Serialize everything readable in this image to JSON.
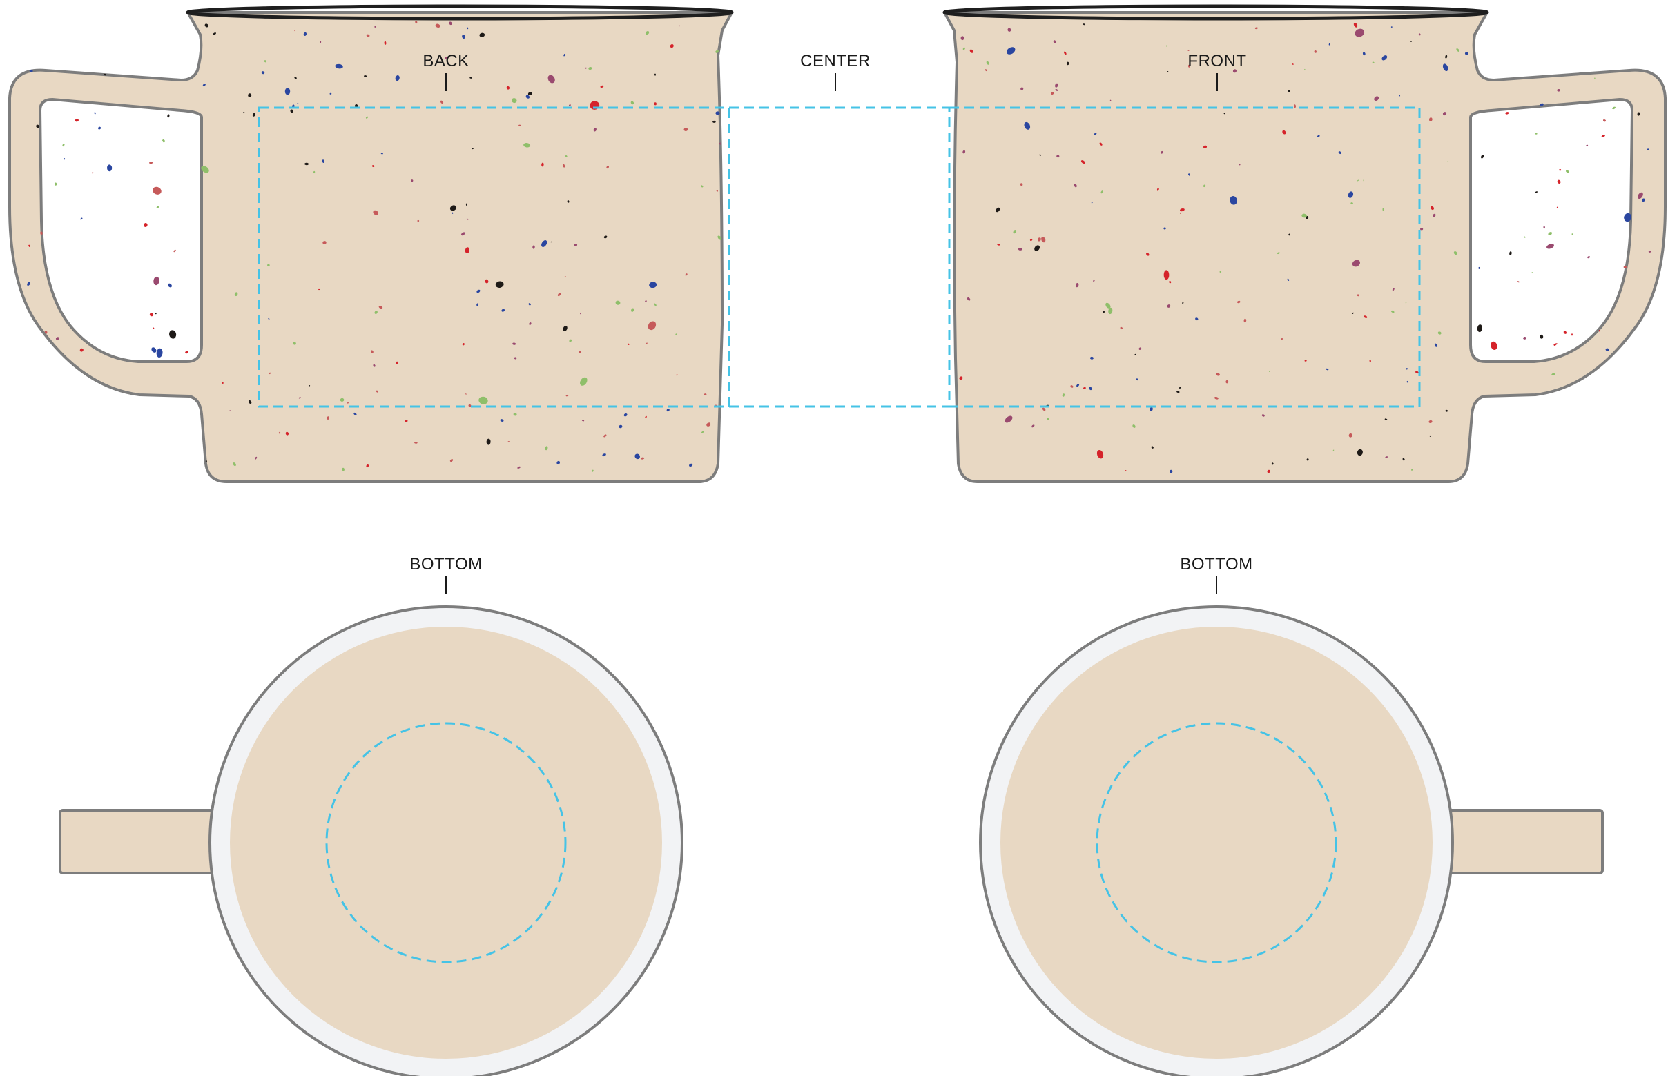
{
  "labels": {
    "back": "BACK",
    "center": "CENTER",
    "front": "FRONT",
    "bottom_left": "BOTTOM",
    "bottom_right": "BOTTOM"
  },
  "colors": {
    "mug_fill": "#e8d8c3",
    "mug_outline": "#7d7d7d",
    "rim": "#1f1f1f",
    "print_guide": "#45c3e6",
    "bottom_rim": "#f2f3f5",
    "speckles": [
      "#1e1a17",
      "#2a46a0",
      "#d5232a",
      "#8fbf6a",
      "#9a4a6f",
      "#c65a5a"
    ]
  }
}
